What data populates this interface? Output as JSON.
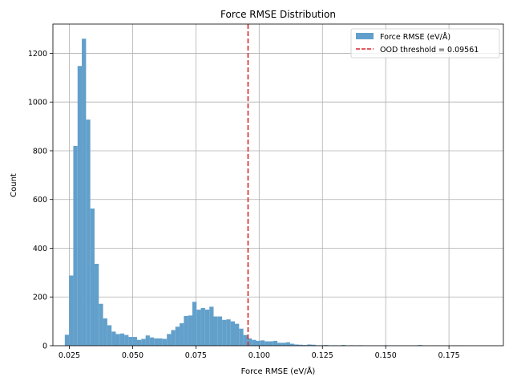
{
  "chart_data": {
    "type": "bar",
    "title": "Force RMSE Distribution",
    "xlabel": "Force RMSE (eV/Å)",
    "ylabel": "Count",
    "xlim": [
      0.0185,
      0.1965
    ],
    "ylim": [
      0,
      1320
    ],
    "xticks": [
      0.025,
      0.05,
      0.075,
      0.1,
      0.125,
      0.15,
      0.175
    ],
    "xtick_labels": [
      "0.025",
      "0.050",
      "0.075",
      "0.100",
      "0.125",
      "0.150",
      "0.175"
    ],
    "yticks": [
      0,
      200,
      400,
      600,
      800,
      1000,
      1200
    ],
    "ytick_labels": [
      "0",
      "200",
      "400",
      "600",
      "800",
      "1000",
      "1200"
    ],
    "grid": true,
    "legend_position": "top-right",
    "bar_color": "#62a0cb",
    "bin_start": 0.0232,
    "bin_width": 0.00168,
    "series": [
      {
        "name": "Force RMSE (eV/Å)",
        "counts": [
          45,
          288,
          820,
          1148,
          1260,
          928,
          563,
          336,
          172,
          112,
          84,
          58,
          48,
          50,
          44,
          36,
          36,
          24,
          28,
          42,
          34,
          30,
          30,
          28,
          48,
          64,
          78,
          92,
          122,
          124,
          180,
          148,
          155,
          148,
          160,
          120,
          120,
          106,
          108,
          100,
          90,
          70,
          44,
          30,
          24,
          20,
          22,
          18,
          18,
          20,
          12,
          12,
          14,
          8,
          5,
          4,
          3,
          5,
          4,
          2,
          2,
          3,
          1,
          2,
          1,
          3,
          1,
          2,
          1,
          2,
          1,
          1,
          1,
          1,
          1,
          2,
          1,
          1,
          1,
          1,
          1,
          1,
          1,
          3,
          1,
          0,
          0,
          1,
          0,
          0,
          0,
          0,
          1,
          1,
          0,
          0,
          0,
          0,
          0,
          1
        ]
      }
    ],
    "threshold": {
      "name": "OOD threshold = 0.09561",
      "value": 0.09561,
      "color": "#d62728"
    }
  }
}
